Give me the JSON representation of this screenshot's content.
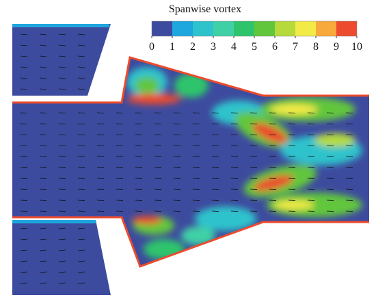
{
  "colorbar": {
    "title": "Spanwise vortex",
    "ticks": [
      0,
      1,
      2,
      3,
      4,
      5,
      6,
      7,
      8,
      9,
      10
    ],
    "colors": [
      "#3d4b9e",
      "#1ea6de",
      "#2ec3cc",
      "#40d0a6",
      "#2fc46c",
      "#62c63c",
      "#b6da3c",
      "#f2ea46",
      "#f7a93c",
      "#ec4b2d"
    ]
  }
}
